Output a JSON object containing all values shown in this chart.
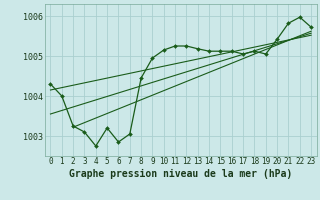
{
  "title": "Graphe pression niveau de la mer (hPa)",
  "bg_color": "#cce8e8",
  "grid_color": "#aacfcf",
  "line_color": "#1a5c1a",
  "x_values": [
    0,
    1,
    2,
    3,
    4,
    5,
    6,
    7,
    8,
    9,
    10,
    11,
    12,
    13,
    14,
    15,
    16,
    17,
    18,
    19,
    20,
    21,
    22,
    23
  ],
  "main_line": [
    1004.3,
    1004.0,
    1003.25,
    1003.1,
    1002.75,
    1003.2,
    1002.85,
    1003.05,
    1004.45,
    1004.95,
    1005.15,
    1005.25,
    1005.25,
    1005.18,
    1005.12,
    1005.12,
    1005.12,
    1005.05,
    1005.12,
    1005.05,
    1005.42,
    1005.82,
    1005.97,
    1005.72
  ],
  "trend_line1": [
    [
      0,
      1004.15
    ],
    [
      23,
      1005.52
    ]
  ],
  "trend_line2": [
    [
      0,
      1003.55
    ],
    [
      23,
      1005.57
    ]
  ],
  "trend_line3": [
    [
      2,
      1003.22
    ],
    [
      23,
      1005.62
    ]
  ],
  "ylim": [
    1002.5,
    1006.3
  ],
  "yticks": [
    1003,
    1004,
    1005,
    1006
  ],
  "xlim": [
    -0.5,
    23.5
  ],
  "title_fontsize": 7.0,
  "tick_fontsize": 5.5
}
